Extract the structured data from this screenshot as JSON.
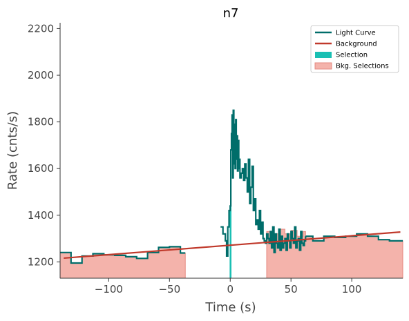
{
  "chart_data": {
    "type": "line",
    "title": "n7",
    "xlabel": "Time (s)",
    "ylabel": "Rate (cnts/s)",
    "xlim": [
      -140,
      142
    ],
    "ylim": [
      1130,
      2225
    ],
    "xticks": [
      -100,
      -50,
      0,
      50,
      100
    ],
    "xtick_labels": [
      "−100",
      "−50",
      "0",
      "50",
      "100"
    ],
    "yticks": [
      1200,
      1400,
      1600,
      1800,
      2000,
      2200
    ],
    "ytick_labels": [
      "1200",
      "1400",
      "1600",
      "1800",
      "2000",
      "2200"
    ],
    "grid": false,
    "legend_position": "top-right",
    "legend": [
      {
        "label": "Light Curve",
        "kind": "line",
        "color": "#006d6a"
      },
      {
        "label": "Background",
        "kind": "line",
        "color": "#c0392b"
      },
      {
        "label": "Selection",
        "kind": "patch",
        "color": "#1abfb3"
      },
      {
        "label": "Bkg. Selections",
        "kind": "patch",
        "color": "#f4b3ab"
      }
    ],
    "colors": {
      "light_curve": "#006d6a",
      "background": "#c0392b",
      "selection": "#1abfb3",
      "bkg_fill": "#f4b3ab",
      "bkg_edge": "#e58a80"
    },
    "light_curve_segments": [
      {
        "x": [
          -140,
          -131,
          -122,
          -113,
          -104,
          -95,
          -86,
          -77,
          -68,
          -59,
          -50,
          -41,
          -37
        ],
        "y": [
          1240,
          1195,
          1225,
          1235,
          1230,
          1228,
          1222,
          1215,
          1240,
          1262,
          1265,
          1238,
          1238
        ]
      },
      {
        "x": [
          -8,
          -6,
          -4,
          -3,
          -2,
          -1,
          0,
          0.5,
          1,
          1.5,
          2,
          2.5,
          3,
          3.5,
          4,
          4.5,
          5,
          5.5,
          6,
          6.5,
          7,
          7.5,
          8,
          9,
          10,
          11,
          12,
          13,
          14,
          15,
          16,
          17,
          18,
          19,
          20,
          21,
          22,
          23,
          24,
          25,
          26,
          27,
          28,
          29,
          30,
          31,
          32,
          33,
          34,
          35,
          36,
          37,
          38,
          39,
          40,
          41,
          42,
          43,
          44,
          45,
          46,
          47,
          48,
          49,
          50,
          51,
          52,
          53,
          54,
          55,
          56,
          57,
          58,
          59,
          60,
          61,
          62
        ],
        "y": [
          1350,
          1320,
          1290,
          1225,
          1350,
          1420,
          1440,
          1680,
          1750,
          1830,
          1560,
          1850,
          1620,
          1790,
          1600,
          1810,
          1640,
          1740,
          1590,
          1720,
          1600,
          1640,
          1560,
          1580,
          1600,
          1550,
          1620,
          1560,
          1500,
          1640,
          1450,
          1520,
          1610,
          1420,
          1470,
          1360,
          1380,
          1340,
          1420,
          1320,
          1370,
          1300,
          1290,
          1280,
          1320,
          1300,
          1280,
          1330,
          1260,
          1350,
          1240,
          1320,
          1280,
          1260,
          1340,
          1250,
          1310,
          1260,
          1280,
          1300,
          1250,
          1320,
          1290,
          1260,
          1330,
          1300,
          1280,
          1350,
          1260,
          1290,
          1300,
          1250,
          1330,
          1280,
          1270,
          1290,
          1310
        ]
      },
      {
        "x": [
          62,
          68,
          77,
          86,
          95,
          104,
          113,
          122,
          131,
          142
        ],
        "y": [
          1310,
          1290,
          1310,
          1305,
          1310,
          1320,
          1310,
          1295,
          1290,
          1290
        ]
      }
    ],
    "background_line": {
      "x": [
        -137,
        140
      ],
      "y": [
        1216,
        1328
      ]
    },
    "selection": {
      "x": [
        -0.5,
        1.0
      ]
    },
    "bkg_selections": [
      {
        "x": [
          -140,
          -131,
          -122,
          -113,
          -104,
          -95,
          -86,
          -77,
          -68,
          -59,
          -50,
          -41,
          -37
        ],
        "y": [
          1240,
          1195,
          1225,
          1235,
          1230,
          1228,
          1222,
          1215,
          1240,
          1262,
          1265,
          1238,
          1238
        ]
      },
      {
        "x": [
          30,
          35,
          40,
          45,
          50,
          55,
          60,
          62,
          68,
          77,
          86,
          95,
          104,
          113,
          122,
          131,
          142
        ],
        "y": [
          1330,
          1320,
          1340,
          1320,
          1335,
          1310,
          1330,
          1310,
          1290,
          1310,
          1305,
          1310,
          1320,
          1310,
          1295,
          1290,
          1290
        ]
      }
    ]
  }
}
